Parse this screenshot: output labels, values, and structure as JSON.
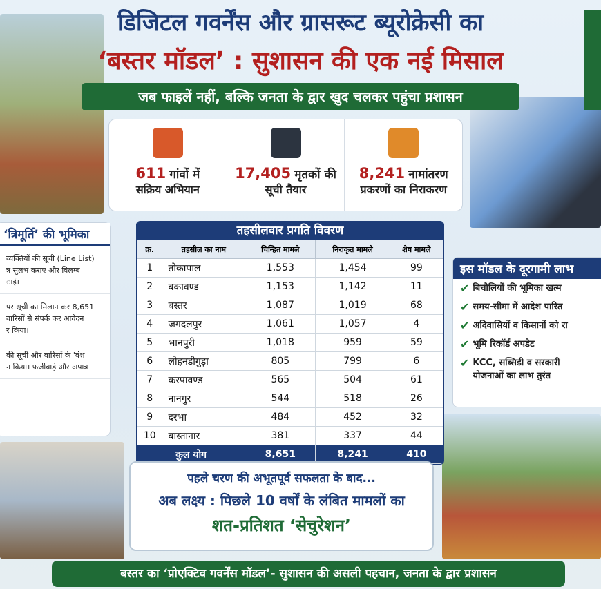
{
  "header": {
    "title_line1": "डिजिटल गवर्नेंस और ग्रासरूट ब्यूरोक्रेसी का",
    "title_line2": "‘बस्तर मॉडल’ : सुशासन की एक नई मिसाल",
    "banner": "जब फाइलें नहीं, बल्कि जनता के द्वार खुद चलकर पहुंचा प्रशासन"
  },
  "stats": [
    {
      "number": "611",
      "text": "गांवों में",
      "line2": "सक्रिय अभियान"
    },
    {
      "number": "17,405",
      "text": "मृतकों की",
      "line2": "सूची तैयार"
    },
    {
      "number": "8,241",
      "text": "नामांतरण",
      "line2": "प्रकरणों का निराकरण"
    }
  ],
  "left_panel": {
    "title": "‘त्रिमूर्ति’ की भूमिका",
    "paragraphs": [
      [
        "व्यक्तियों की सूची (Line List)",
        "त्र सुलभ कराए और विलम्ब",
        "ाई।"
      ],
      [
        "पर सूची का मिलान कर 8,651",
        "वारिसों से संपर्क कर आवेदन",
        "र किया।"
      ],
      [
        "की सूची और वारिसों के 'वंश",
        "न किया। फर्जीवाड़े और अपात्र"
      ]
    ]
  },
  "table": {
    "title": "तहसीलवार प्रगति विवरण",
    "headers": [
      "क्र.",
      "तहसील का नाम",
      "चिन्हित मामले",
      "निराकृत मामले",
      "शेष मामले"
    ],
    "rows": [
      [
        "1",
        "तोकापाल",
        "1,553",
        "1,454",
        "99"
      ],
      [
        "2",
        "बकावण्ड",
        "1,153",
        "1,142",
        "11"
      ],
      [
        "3",
        "बस्तर",
        "1,087",
        "1,019",
        "68"
      ],
      [
        "4",
        "जगदलपुर",
        "1,061",
        "1,057",
        "4"
      ],
      [
        "5",
        "भानपुरी",
        "1,018",
        "959",
        "59"
      ],
      [
        "6",
        "लोहनडीगुड़ा",
        "805",
        "799",
        "6"
      ],
      [
        "7",
        "करपावण्ड",
        "565",
        "504",
        "61"
      ],
      [
        "8",
        "नानगुर",
        "544",
        "518",
        "26"
      ],
      [
        "9",
        "दरभा",
        "484",
        "452",
        "32"
      ],
      [
        "10",
        "बास्तानार",
        "381",
        "337",
        "44"
      ]
    ],
    "total": [
      "कुल योग",
      "8,651",
      "8,241",
      "410"
    ]
  },
  "right_panel": {
    "title": "इस मॉडल के दूरगामी लाभ",
    "items": [
      [
        "बिचौलियों की भूमिका खत्म"
      ],
      [
        "समय-सीमा में आदेश पारित"
      ],
      [
        "अदिवासियों व किसानों को रा"
      ],
      [
        "भूमि रिकॉर्ड अपडेट"
      ],
      [
        "KCC, सब्सिडी व सरकारी",
        "योजनाओं का लाभ तुरंत"
      ]
    ]
  },
  "goal": {
    "line1": "पहले चरण की अभूतपूर्व सफलता के बाद...",
    "line2": "अब लक्ष्य : पिछले 10 वर्षों के लंबित मामलों का",
    "line3": "शत-प्रतिशत ‘सेचुरेशन’"
  },
  "footer": "बस्तर का ‘प्रोएक्टिव गवर्नेंस मॉडल’- सुशासन की असली पहचान, जनता के द्वार प्रशासन"
}
